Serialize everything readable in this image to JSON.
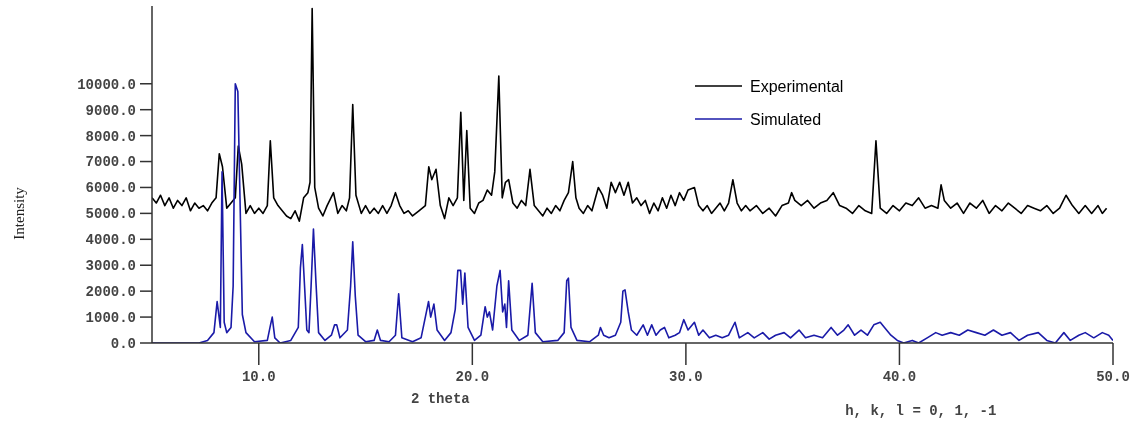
{
  "chart_data": {
    "type": "line",
    "xlabel": "2 theta",
    "ylabel": "Intensity",
    "annotations": [
      "h, k, l = 0, 1, -1"
    ],
    "xlim": [
      5,
      50
    ],
    "ylim": [
      0,
      13000
    ],
    "xticks": [
      {
        "value": 10,
        "label": "10.0"
      },
      {
        "value": 20,
        "label": "20.0"
      },
      {
        "value": 30,
        "label": "30.0"
      },
      {
        "value": 40,
        "label": "40.0"
      },
      {
        "value": 50,
        "label": "50.0"
      }
    ],
    "yticks": [
      {
        "value": 0,
        "label": "0.0"
      },
      {
        "value": 1000,
        "label": "1000.0"
      },
      {
        "value": 2000,
        "label": "2000.0"
      },
      {
        "value": 3000,
        "label": "3000.0"
      },
      {
        "value": 4000,
        "label": "4000.0"
      },
      {
        "value": 5000,
        "label": "5000.0"
      },
      {
        "value": 6000,
        "label": "6000.0"
      },
      {
        "value": 7000,
        "label": "7000.0"
      },
      {
        "value": 8000,
        "label": "8000.0"
      },
      {
        "value": 9000,
        "label": "9000.0"
      },
      {
        "value": 10000,
        "label": "10000.0"
      }
    ],
    "grid": false,
    "legend": "top right",
    "marker": "none",
    "line_style": "solid",
    "series": [
      {
        "name": "Experimental",
        "color": "#000000",
        "x": [
          5.0,
          5.2,
          5.4,
          5.6,
          5.8,
          6.0,
          6.2,
          6.4,
          6.6,
          6.8,
          7.0,
          7.2,
          7.4,
          7.6,
          7.8,
          8.0,
          8.15,
          8.3,
          8.5,
          8.7,
          8.9,
          9.04,
          9.2,
          9.4,
          9.6,
          9.8,
          10.0,
          10.2,
          10.4,
          10.54,
          10.7,
          10.9,
          11.1,
          11.3,
          11.5,
          11.7,
          11.9,
          12.1,
          12.3,
          12.4,
          12.5,
          12.62,
          12.8,
          13.0,
          13.2,
          13.5,
          13.7,
          13.9,
          14.1,
          14.25,
          14.4,
          14.55,
          14.8,
          15.0,
          15.2,
          15.4,
          15.6,
          15.8,
          16.0,
          16.2,
          16.4,
          16.6,
          16.8,
          17.0,
          17.2,
          17.5,
          17.8,
          17.96,
          18.1,
          18.3,
          18.5,
          18.7,
          18.9,
          19.1,
          19.3,
          19.46,
          19.6,
          19.74,
          19.9,
          20.1,
          20.3,
          20.5,
          20.7,
          20.9,
          21.05,
          21.24,
          21.4,
          21.55,
          21.7,
          21.9,
          22.1,
          22.3,
          22.5,
          22.7,
          22.9,
          23.1,
          23.3,
          23.5,
          23.7,
          23.9,
          24.1,
          24.3,
          24.5,
          24.7,
          24.85,
          25.0,
          25.2,
          25.4,
          25.6,
          25.9,
          26.1,
          26.3,
          26.5,
          26.7,
          26.9,
          27.1,
          27.3,
          27.5,
          27.7,
          27.9,
          28.1,
          28.3,
          28.5,
          28.7,
          28.9,
          29.1,
          29.3,
          29.5,
          29.7,
          29.9,
          30.1,
          30.4,
          30.6,
          30.8,
          31.0,
          31.2,
          31.4,
          31.6,
          31.8,
          32.0,
          32.2,
          32.4,
          32.6,
          32.8,
          33.0,
          33.3,
          33.6,
          33.9,
          34.2,
          34.5,
          34.8,
          34.95,
          35.1,
          35.4,
          35.7,
          36.0,
          36.3,
          36.6,
          36.9,
          37.2,
          37.5,
          37.8,
          38.1,
          38.4,
          38.7,
          38.9,
          39.1,
          39.4,
          39.7,
          40.0,
          40.3,
          40.6,
          40.9,
          41.2,
          41.5,
          41.8,
          41.95,
          42.1,
          42.4,
          42.7,
          43.0,
          43.3,
          43.6,
          43.9,
          44.2,
          44.5,
          44.8,
          45.1,
          45.4,
          45.7,
          46.0,
          46.3,
          46.6,
          46.9,
          47.2,
          47.5,
          47.8,
          48.1,
          48.4,
          48.7,
          49.0,
          49.3,
          49.5,
          49.7
        ],
        "values": [
          5600,
          5400,
          5700,
          5300,
          5600,
          5200,
          5500,
          5300,
          5600,
          5100,
          5400,
          5200,
          5300,
          5100,
          5400,
          5600,
          7300,
          6800,
          5200,
          5400,
          5600,
          7600,
          6900,
          5000,
          5300,
          5000,
          5200,
          5000,
          5300,
          7800,
          5600,
          5300,
          5100,
          4900,
          4800,
          5100,
          4700,
          5600,
          5800,
          6200,
          12900,
          6000,
          5200,
          4900,
          5300,
          5800,
          5000,
          5300,
          5100,
          5600,
          9200,
          5700,
          5000,
          5300,
          5000,
          5200,
          5000,
          5300,
          5000,
          5300,
          5800,
          5300,
          5000,
          5100,
          4900,
          5100,
          5300,
          6800,
          6300,
          6700,
          5300,
          4800,
          5600,
          5300,
          5600,
          8900,
          5500,
          8200,
          5200,
          5000,
          5400,
          5500,
          5900,
          5700,
          6600,
          10300,
          5600,
          6200,
          6300,
          5400,
          5200,
          5500,
          5300,
          6700,
          5300,
          5100,
          4900,
          5200,
          5000,
          5300,
          5100,
          5500,
          5800,
          7000,
          5600,
          5200,
          5000,
          5300,
          5100,
          6000,
          5700,
          5200,
          6200,
          5800,
          6200,
          5700,
          6200,
          5400,
          5600,
          5300,
          5500,
          5000,
          5400,
          5100,
          5600,
          5200,
          5700,
          5300,
          5800,
          5500,
          5900,
          6000,
          5300,
          5100,
          5300,
          5000,
          5200,
          5400,
          5100,
          5400,
          6300,
          5400,
          5100,
          5300,
          5100,
          5300,
          5000,
          5200,
          4900,
          5300,
          5400,
          5800,
          5500,
          5300,
          5500,
          5200,
          5400,
          5500,
          5800,
          5300,
          5200,
          5000,
          5300,
          5100,
          5000,
          7800,
          5200,
          5000,
          5300,
          5100,
          5400,
          5300,
          5600,
          5200,
          5300,
          5200,
          6100,
          5500,
          5200,
          5400,
          5000,
          5400,
          5200,
          5500,
          5000,
          5300,
          5100,
          5400,
          5200,
          5000,
          5300,
          5200,
          5100,
          5300,
          5000,
          5200,
          5700,
          5300,
          5000,
          5300,
          5000,
          5300,
          5000,
          5200
        ]
      },
      {
        "name": "Simulated",
        "color": "#1a1aa8",
        "x": [
          5.0,
          7.2,
          7.6,
          7.9,
          8.05,
          8.2,
          8.28,
          8.38,
          8.5,
          8.7,
          8.8,
          8.9,
          9.02,
          9.12,
          9.23,
          9.4,
          9.8,
          10.4,
          10.55,
          10.63,
          10.75,
          11.0,
          11.5,
          11.85,
          11.95,
          12.04,
          12.15,
          12.25,
          12.35,
          12.45,
          12.56,
          12.68,
          12.8,
          13.1,
          13.4,
          13.55,
          13.65,
          13.8,
          14.15,
          14.3,
          14.4,
          14.52,
          14.65,
          15.0,
          15.4,
          15.55,
          15.7,
          16.1,
          16.4,
          16.55,
          16.7,
          17.2,
          17.6,
          17.85,
          17.95,
          18.05,
          18.2,
          18.35,
          18.7,
          19.0,
          19.2,
          19.32,
          19.45,
          19.55,
          19.65,
          19.8,
          20.1,
          20.4,
          20.6,
          20.7,
          20.8,
          20.95,
          21.15,
          21.3,
          21.42,
          21.52,
          21.6,
          21.7,
          21.85,
          22.2,
          22.6,
          22.8,
          22.95,
          23.3,
          24.0,
          24.3,
          24.42,
          24.5,
          24.62,
          24.9,
          25.5,
          25.9,
          26.0,
          26.15,
          26.4,
          26.7,
          26.95,
          27.05,
          27.15,
          27.3,
          27.45,
          27.7,
          28.0,
          28.2,
          28.4,
          28.6,
          28.8,
          29.0,
          29.2,
          29.5,
          29.7,
          29.9,
          30.1,
          30.4,
          30.6,
          30.8,
          31.1,
          31.4,
          31.7,
          32.0,
          32.3,
          32.5,
          32.9,
          33.2,
          33.6,
          33.9,
          34.2,
          34.6,
          34.9,
          35.3,
          35.6,
          36.0,
          36.4,
          36.8,
          37.1,
          37.4,
          37.6,
          37.9,
          38.2,
          38.5,
          38.8,
          39.1,
          39.3,
          39.6,
          39.9,
          40.2,
          40.6,
          40.9,
          41.3,
          41.7,
          42.0,
          42.4,
          42.8,
          43.2,
          43.6,
          44.0,
          44.4,
          44.8,
          45.2,
          45.6,
          46.0,
          46.5,
          46.9,
          47.3,
          47.7,
          48.0,
          48.4,
          48.7,
          49.1,
          49.5,
          49.8,
          50.0
        ],
        "values": [
          0,
          0,
          100,
          400,
          1600,
          600,
          6600,
          800,
          400,
          600,
          2200,
          10000,
          9700,
          5600,
          1100,
          400,
          50,
          100,
          700,
          1000,
          200,
          0,
          100,
          600,
          2900,
          3800,
          2100,
          500,
          400,
          2200,
          4400,
          2300,
          400,
          100,
          300,
          700,
          700,
          200,
          500,
          2200,
          3900,
          1800,
          300,
          50,
          100,
          500,
          100,
          50,
          300,
          1900,
          200,
          50,
          200,
          1200,
          1600,
          1000,
          1500,
          500,
          100,
          400,
          1300,
          2800,
          2800,
          1500,
          2700,
          600,
          100,
          300,
          1400,
          1000,
          1200,
          500,
          2200,
          2800,
          1200,
          1500,
          600,
          2400,
          500,
          100,
          300,
          2300,
          400,
          50,
          100,
          400,
          2400,
          2500,
          600,
          100,
          50,
          300,
          600,
          300,
          200,
          300,
          800,
          2000,
          2050,
          1200,
          500,
          300,
          700,
          300,
          700,
          300,
          500,
          600,
          200,
          300,
          400,
          900,
          500,
          800,
          300,
          500,
          200,
          300,
          200,
          300,
          800,
          200,
          400,
          200,
          400,
          150,
          300,
          400,
          200,
          500,
          200,
          300,
          200,
          600,
          300,
          500,
          700,
          300,
          500,
          300,
          700,
          800,
          600,
          300,
          100,
          0,
          100,
          0,
          200,
          400,
          300,
          400,
          300,
          500,
          400,
          300,
          500,
          300,
          400,
          100,
          300,
          400,
          100,
          0,
          400,
          100,
          300,
          400,
          200,
          400,
          300,
          100
        ]
      }
    ]
  }
}
